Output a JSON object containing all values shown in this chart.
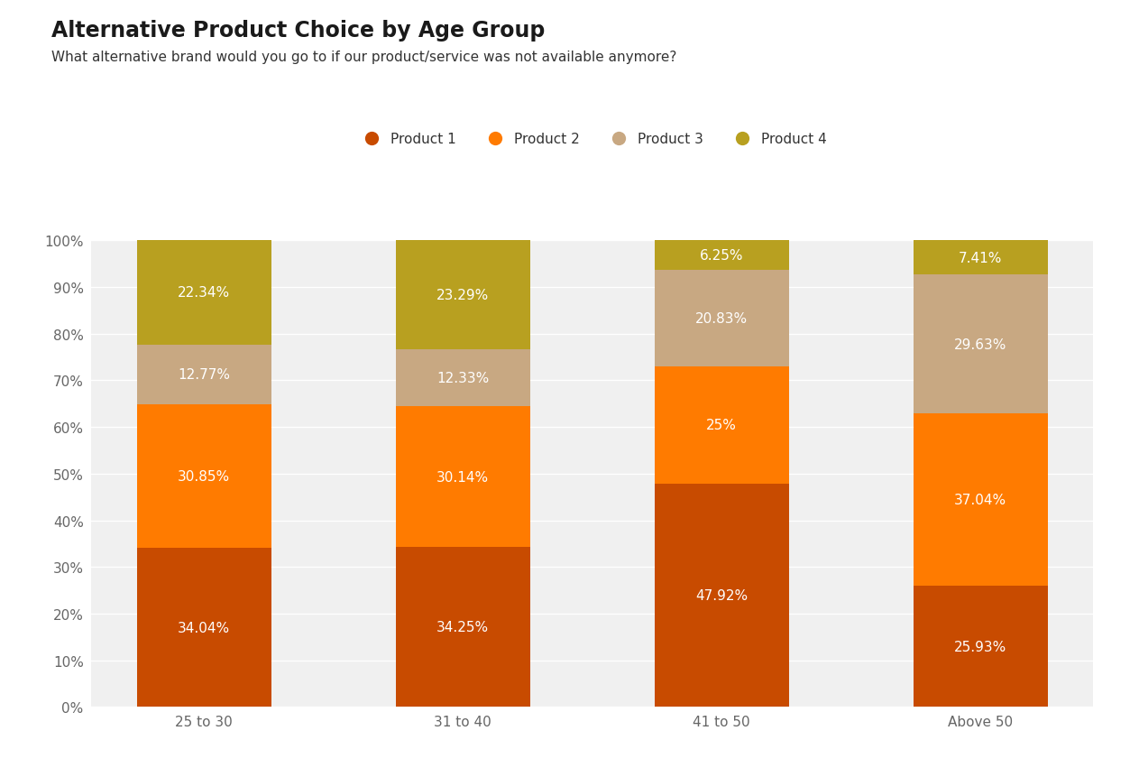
{
  "title": "Alternative Product Choice by Age Group",
  "subtitle": "What alternative brand would you go to if our product/service was not available anymore?",
  "categories": [
    "25 to 30",
    "31 to 40",
    "41 to 50",
    "Above 50"
  ],
  "series": [
    {
      "name": "Product 1",
      "color": "#c84b00",
      "values": [
        34.04,
        34.25,
        47.92,
        25.93
      ]
    },
    {
      "name": "Product 2",
      "color": "#ff7b00",
      "values": [
        30.85,
        30.14,
        25.0,
        37.04
      ]
    },
    {
      "name": "Product 3",
      "color": "#c8a882",
      "values": [
        12.77,
        12.33,
        20.83,
        29.63
      ]
    },
    {
      "name": "Product 4",
      "color": "#b8a020",
      "values": [
        22.34,
        23.29,
        6.25,
        7.41
      ]
    }
  ],
  "ylim": [
    0,
    100
  ],
  "ytick_labels": [
    "0%",
    "10%",
    "20%",
    "30%",
    "40%",
    "50%",
    "60%",
    "70%",
    "80%",
    "90%",
    "100%"
  ],
  "ytick_values": [
    0,
    10,
    20,
    30,
    40,
    50,
    60,
    70,
    80,
    90,
    100
  ],
  "background_color": "#ffffff",
  "plot_bg_color": "#f0f0f0",
  "title_fontsize": 17,
  "subtitle_fontsize": 11,
  "label_fontsize": 11,
  "tick_fontsize": 11,
  "legend_fontsize": 11,
  "bar_width": 0.52,
  "text_color": "#ffffff",
  "grid_color": "#ffffff",
  "tick_color": "#666666"
}
